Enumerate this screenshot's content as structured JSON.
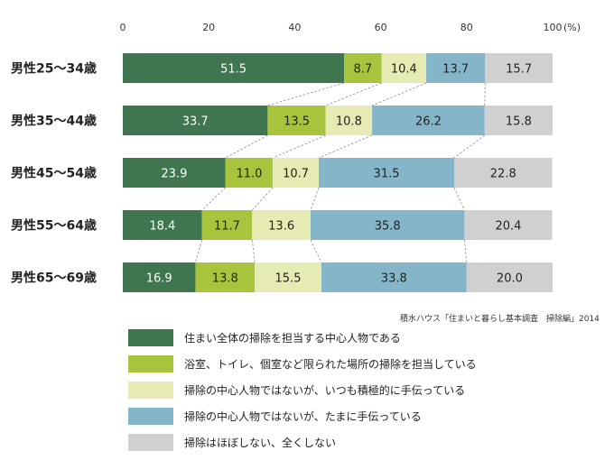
{
  "chart_data": {
    "type": "bar",
    "orientation": "horizontal",
    "stacked": true,
    "categories": [
      "男性25〜34歳",
      "男性35〜44歳",
      "男性45〜54歳",
      "男性55〜64歳",
      "男性65〜69歳"
    ],
    "series": [
      {
        "name": "住まい全体の掃除を担当する中心人物である",
        "color": "#3f7650",
        "label_color": "#ffffff",
        "values": [
          51.5,
          33.7,
          23.9,
          18.4,
          16.9
        ]
      },
      {
        "name": "浴室、トイレ、個室など限られた場所の掃除を担当している",
        "color": "#a8c43c",
        "label_color": "#222222",
        "values": [
          8.7,
          13.5,
          11.0,
          11.7,
          13.8
        ]
      },
      {
        "name": "掃除の中心人物ではないが、いつも積極的に手伝っている",
        "color": "#e5ebb2",
        "label_color": "#222222",
        "values": [
          10.4,
          10.8,
          10.7,
          13.6,
          15.5
        ]
      },
      {
        "name": "掃除の中心人物ではないが、たまに手伝っている",
        "color": "#84b5c9",
        "label_color": "#222222",
        "values": [
          13.7,
          26.2,
          31.5,
          35.8,
          33.8
        ]
      },
      {
        "name": "掃除はほぼしない、全くしない",
        "color": "#d0d0d0",
        "label_color": "#222222",
        "values": [
          15.7,
          15.8,
          22.8,
          20.4,
          20.0
        ]
      }
    ],
    "xlim": [
      0,
      100
    ],
    "x_ticks": [
      "0",
      "20",
      "40",
      "60",
      "80",
      "100"
    ],
    "unit": "(%)",
    "legend_position": "bottom",
    "grid": false,
    "source": "積水ハウス「住まいと暮らし基本調査　掃除編」2014"
  }
}
